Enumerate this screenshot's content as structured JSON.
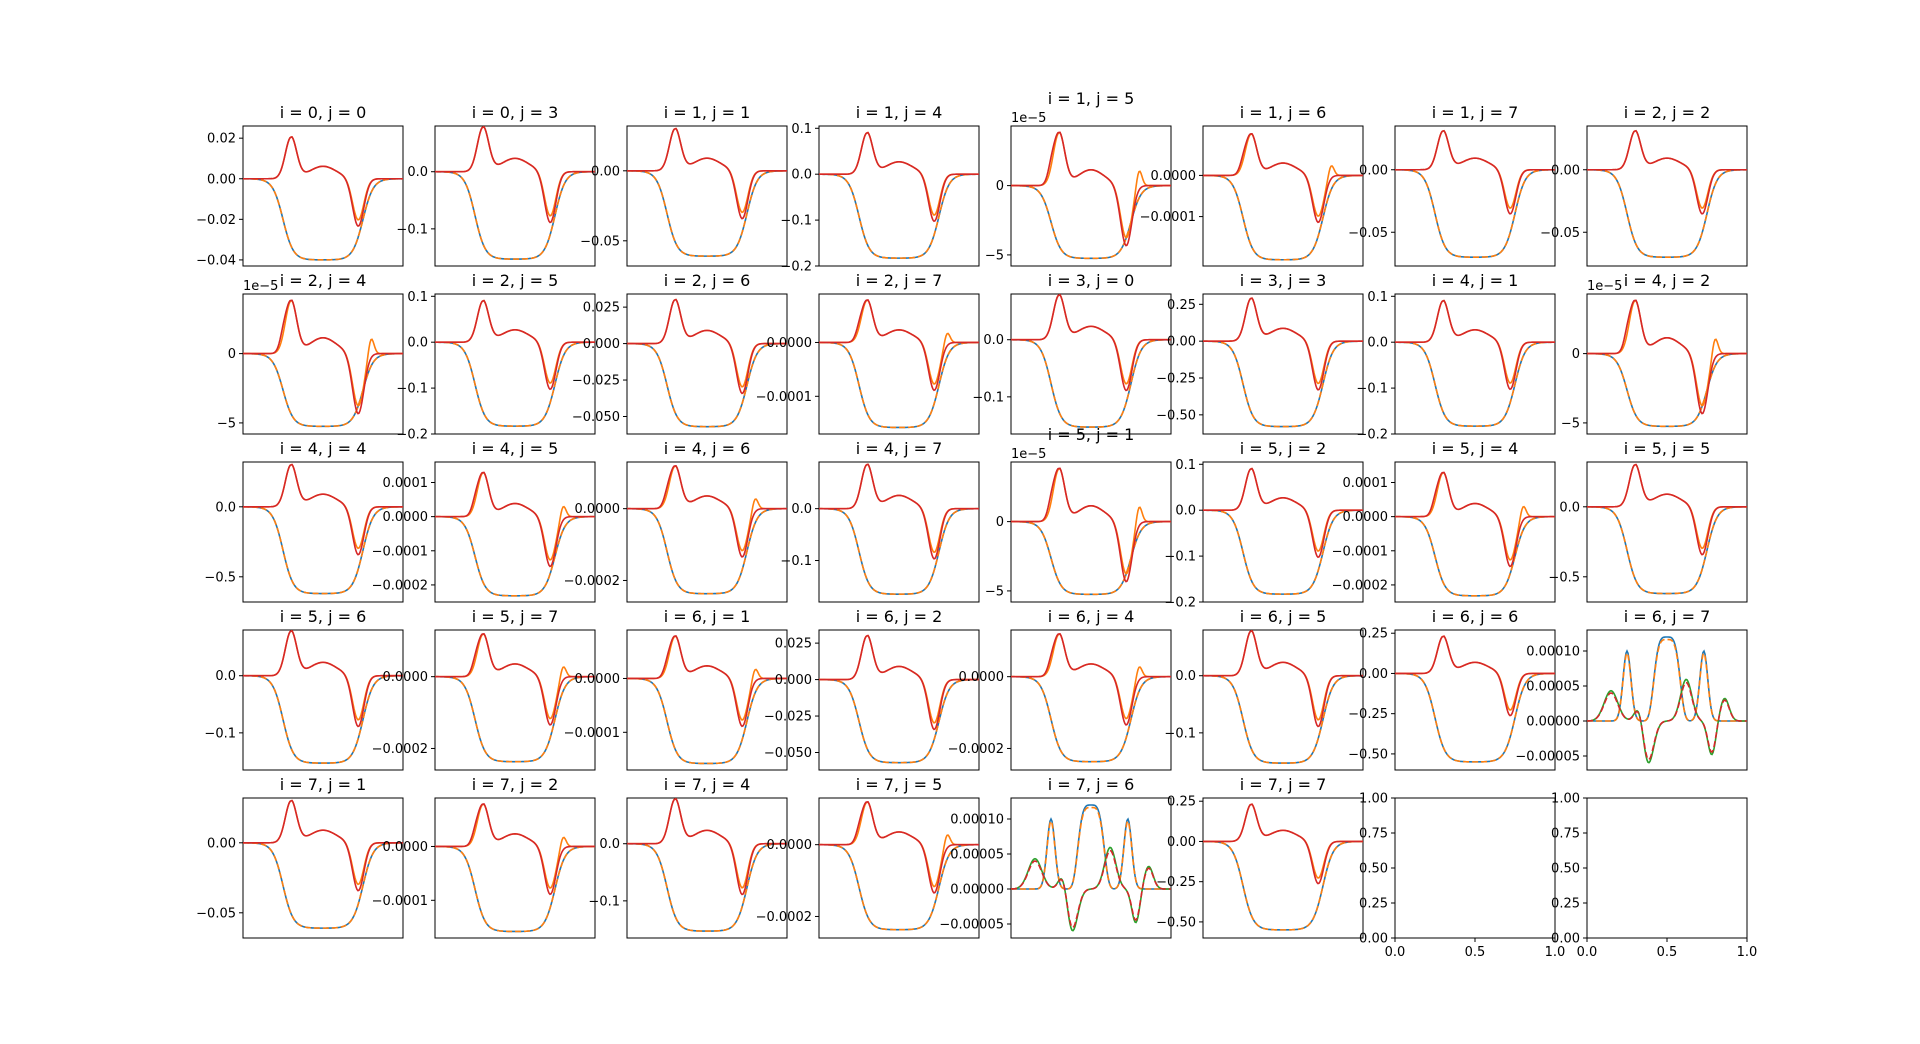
{
  "chart_data": {
    "type": "line",
    "layout": {
      "rows": 5,
      "cols": 8
    },
    "x_range": [
      0,
      1
    ],
    "colors": {
      "a": "#1f77b4",
      "b": "#ff7f0e",
      "c": "#2ca02c",
      "d": "#d62728"
    },
    "panels": [
      {
        "title": "i = 0, j = 0",
        "ylim": [
          -0.043,
          0.026
        ],
        "yticks": [
          "0.02",
          "0.00",
          "−0.02",
          "−0.04"
        ],
        "ytick_values": [
          0.02,
          0.0,
          -0.02,
          -0.04
        ],
        "peak": 0.0205,
        "trough": -0.0205,
        "low": -0.04
      },
      {
        "title": "i = 0, j = 3",
        "ylim": [
          -0.165,
          0.08
        ],
        "yticks": [
          "0.0",
          "−0.1"
        ],
        "ytick_values": [
          0.0,
          -0.1
        ],
        "peak": 0.078,
        "trough": -0.078,
        "low": -0.153
      },
      {
        "title": "i = 1, j = 1",
        "ylim": [
          -0.068,
          0.032
        ],
        "yticks": [
          "0.00",
          "−0.05"
        ],
        "ytick_values": [
          0.0,
          -0.05
        ],
        "peak": 0.03,
        "trough": -0.03,
        "low": -0.061
      },
      {
        "title": "i = 1, j = 4",
        "ylim": [
          -0.2,
          0.105
        ],
        "yticks": [
          "0.1",
          "0.0",
          "−0.1",
          "−0.2"
        ],
        "ytick_values": [
          0.1,
          0.0,
          -0.1,
          -0.2
        ],
        "peak": 0.09,
        "trough": -0.09,
        "low": -0.183
      },
      {
        "title": "i = 1, j = 5",
        "offset": "1e−5",
        "ylim": [
          -5.8,
          4.3
        ],
        "yticks": [
          "0",
          "−5"
        ],
        "ytick_values": [
          0,
          -5
        ],
        "peak": 3.8,
        "trough": -3.8,
        "low": -5.25,
        "bump": 1.3
      },
      {
        "title": "i = 1, j = 6",
        "ylim": [
          -0.00022,
          0.00012
        ],
        "yticks": [
          "0.0000",
          "−0.0001"
        ],
        "ytick_values": [
          0.0,
          -0.0001
        ],
        "peak": 0.0001,
        "trough": -0.0001,
        "low": -0.000205,
        "bump": 3e-05
      },
      {
        "title": "i = 1, j = 7",
        "ylim": [
          -0.077,
          0.035
        ],
        "yticks": [
          "0.00",
          "−0.05"
        ],
        "ytick_values": [
          0.0,
          -0.05
        ],
        "peak": 0.031,
        "trough": -0.031,
        "low": -0.07
      },
      {
        "title": "i = 2, j = 2",
        "ylim": [
          -0.077,
          0.035
        ],
        "yticks": [
          "0.00",
          "−0.05"
        ],
        "ytick_values": [
          0.0,
          -0.05
        ],
        "peak": 0.031,
        "trough": -0.031,
        "low": -0.07
      },
      {
        "title": "i = 2, j = 4",
        "offset": "1e−5",
        "ylim": [
          -5.8,
          4.3
        ],
        "yticks": [
          "0",
          "−5"
        ],
        "ytick_values": [
          0,
          -5
        ],
        "peak": 3.8,
        "trough": -3.8,
        "low": -5.25,
        "bump": 1.3
      },
      {
        "title": "i = 2, j = 5",
        "ylim": [
          -0.2,
          0.105
        ],
        "yticks": [
          "0.1",
          "0.0",
          "−0.1",
          "−0.2"
        ],
        "ytick_values": [
          0.1,
          0.0,
          -0.1,
          -0.2
        ],
        "peak": 0.09,
        "trough": -0.09,
        "low": -0.183
      },
      {
        "title": "i = 2, j = 6",
        "ylim": [
          -0.062,
          0.034
        ],
        "yticks": [
          "0.025",
          "0.000",
          "−0.025",
          "−0.050"
        ],
        "ytick_values": [
          0.025,
          0.0,
          -0.025,
          -0.05
        ],
        "peak": 0.03,
        "trough": -0.03,
        "low": -0.057
      },
      {
        "title": "i = 2, j = 7",
        "ylim": [
          -0.00017,
          9e-05
        ],
        "yticks": [
          "0.0000",
          "−0.0001"
        ],
        "ytick_values": [
          0.0,
          -0.0001
        ],
        "peak": 7.8e-05,
        "trough": -7.8e-05,
        "low": -0.000158,
        "bump": 2.2e-05
      },
      {
        "title": "i = 3, j = 0",
        "ylim": [
          -0.165,
          0.08
        ],
        "yticks": [
          "0.0",
          "−0.1"
        ],
        "ytick_values": [
          0.0,
          -0.1
        ],
        "peak": 0.078,
        "trough": -0.078,
        "low": -0.153
      },
      {
        "title": "i = 3, j = 3",
        "ylim": [
          -0.63,
          0.32
        ],
        "yticks": [
          "0.25",
          "0.00",
          "−0.25",
          "−0.50"
        ],
        "ytick_values": [
          0.25,
          0.0,
          -0.25,
          -0.5
        ],
        "peak": 0.29,
        "trough": -0.29,
        "low": -0.58
      },
      {
        "title": "i = 4, j = 1",
        "ylim": [
          -0.2,
          0.105
        ],
        "yticks": [
          "0.1",
          "0.0",
          "−0.1",
          "−0.2"
        ],
        "ytick_values": [
          0.1,
          0.0,
          -0.1,
          -0.2
        ],
        "peak": 0.09,
        "trough": -0.09,
        "low": -0.183
      },
      {
        "title": "i = 4, j = 2",
        "offset": "1e−5",
        "ylim": [
          -5.8,
          4.3
        ],
        "yticks": [
          "0",
          "−5"
        ],
        "ytick_values": [
          0,
          -5
        ],
        "peak": 3.8,
        "trough": -3.8,
        "low": -5.25,
        "bump": 1.3
      },
      {
        "title": "i = 4, j = 4",
        "ylim": [
          -0.68,
          0.32
        ],
        "yticks": [
          "0.0",
          "−0.5"
        ],
        "ytick_values": [
          0.0,
          -0.5
        ],
        "peak": 0.3,
        "trough": -0.3,
        "low": -0.62
      },
      {
        "title": "i = 4, j = 5",
        "ylim": [
          -0.00025,
          0.00016
        ],
        "yticks": [
          "0.0001",
          "0.0000",
          "−0.0001",
          "−0.0002"
        ],
        "ytick_values": [
          0.0001,
          0.0,
          -0.0001,
          -0.0002
        ],
        "peak": 0.000128,
        "trough": -0.000128,
        "low": -0.000232,
        "bump": 3.8e-05
      },
      {
        "title": "i = 4, j = 6",
        "ylim": [
          -0.00026,
          0.00013
        ],
        "yticks": [
          "0.0000",
          "−0.0002"
        ],
        "ytick_values": [
          0.0,
          -0.0002
        ],
        "peak": 0.000118,
        "trough": -0.000118,
        "low": -0.000237,
        "bump": 3.5e-05
      },
      {
        "title": "i = 4, j = 7",
        "ylim": [
          -0.18,
          0.09
        ],
        "yticks": [
          "0.0",
          "−0.1"
        ],
        "ytick_values": [
          0.0,
          -0.1
        ],
        "peak": 0.085,
        "trough": -0.085,
        "low": -0.165
      },
      {
        "title": "i = 5, j = 1",
        "offset": "1e−5",
        "ylim": [
          -5.8,
          4.3
        ],
        "yticks": [
          "0",
          "−5"
        ],
        "ytick_values": [
          0,
          -5
        ],
        "peak": 3.8,
        "trough": -3.8,
        "low": -5.25,
        "bump": 1.3
      },
      {
        "title": "i = 5, j = 2",
        "ylim": [
          -0.2,
          0.105
        ],
        "yticks": [
          "0.1",
          "0.0",
          "−0.1",
          "−0.2"
        ],
        "ytick_values": [
          0.1,
          0.0,
          -0.1,
          -0.2
        ],
        "peak": 0.09,
        "trough": -0.09,
        "low": -0.183
      },
      {
        "title": "i = 5, j = 4",
        "ylim": [
          -0.00025,
          0.00016
        ],
        "yticks": [
          "0.0001",
          "0.0000",
          "−0.0001",
          "−0.0002"
        ],
        "ytick_values": [
          0.0001,
          0.0,
          -0.0001,
          -0.0002
        ],
        "peak": 0.000128,
        "trough": -0.000128,
        "low": -0.000232,
        "bump": 3.8e-05
      },
      {
        "title": "i = 5, j = 5",
        "ylim": [
          -0.68,
          0.32
        ],
        "yticks": [
          "0.0",
          "−0.5"
        ],
        "ytick_values": [
          0.0,
          -0.5
        ],
        "peak": 0.3,
        "trough": -0.3,
        "low": -0.62
      },
      {
        "title": "i = 5, j = 6",
        "ylim": [
          -0.165,
          0.08
        ],
        "yticks": [
          "0.0",
          "−0.1"
        ],
        "ytick_values": [
          0.0,
          -0.1
        ],
        "peak": 0.078,
        "trough": -0.078,
        "low": -0.153
      },
      {
        "title": "i = 5, j = 7",
        "ylim": [
          -0.00026,
          0.00013
        ],
        "yticks": [
          "0.0000",
          "−0.0002"
        ],
        "ytick_values": [
          0.0,
          -0.0002
        ],
        "peak": 0.000118,
        "trough": -0.000118,
        "low": -0.000237,
        "bump": 3.5e-05
      },
      {
        "title": "i = 6, j = 1",
        "ylim": [
          -0.00017,
          9e-05
        ],
        "yticks": [
          "0.0000",
          "−0.0001"
        ],
        "ytick_values": [
          0.0,
          -0.0001
        ],
        "peak": 7.8e-05,
        "trough": -7.8e-05,
        "low": -0.000158,
        "bump": 2.2e-05
      },
      {
        "title": "i = 6, j = 2",
        "ylim": [
          -0.062,
          0.034
        ],
        "yticks": [
          "0.025",
          "0.000",
          "−0.025",
          "−0.050"
        ],
        "ytick_values": [
          0.025,
          0.0,
          -0.025,
          -0.05
        ],
        "peak": 0.03,
        "trough": -0.03,
        "low": -0.057
      },
      {
        "title": "i = 6, j = 4",
        "ylim": [
          -0.00026,
          0.00013
        ],
        "yticks": [
          "0.0000",
          "−0.0002"
        ],
        "ytick_values": [
          0.0,
          -0.0002
        ],
        "peak": 0.000118,
        "trough": -0.000118,
        "low": -0.000237,
        "bump": 3.5e-05
      },
      {
        "title": "i = 6, j = 5",
        "ylim": [
          -0.165,
          0.08
        ],
        "yticks": [
          "0.0",
          "−0.1"
        ],
        "ytick_values": [
          0.0,
          -0.1
        ],
        "peak": 0.078,
        "trough": -0.078,
        "low": -0.153
      },
      {
        "title": "i = 6, j = 6",
        "ylim": [
          -0.6,
          0.27
        ],
        "yticks": [
          "0.25",
          "0.00",
          "−0.25",
          "−0.50"
        ],
        "ytick_values": [
          0.25,
          0.0,
          -0.25,
          -0.5
        ],
        "peak": 0.23,
        "trough": -0.23,
        "low": -0.55
      },
      {
        "title": "i = 6, j = 7",
        "variant": "oscillating",
        "ylim": [
          -7e-05,
          0.00013
        ],
        "yticks": [
          "0.00010",
          "0.00005",
          "0.00000",
          "−0.00005"
        ],
        "ytick_values": [
          0.0001,
          5e-05,
          0.0,
          -5e-05
        ],
        "peak": 0.00012,
        "side_peak": 0.0001,
        "dip": -6e-05
      },
      {
        "title": "i = 7, j = 1",
        "ylim": [
          -0.068,
          0.032
        ],
        "yticks": [
          "0.00",
          "−0.05"
        ],
        "ytick_values": [
          0.0,
          -0.05
        ],
        "peak": 0.03,
        "trough": -0.03,
        "low": -0.061
      },
      {
        "title": "i = 7, j = 2",
        "ylim": [
          -0.00017,
          9e-05
        ],
        "yticks": [
          "0.0000",
          "−0.0001"
        ],
        "ytick_values": [
          0.0,
          -0.0001
        ],
        "peak": 7.8e-05,
        "trough": -7.8e-05,
        "low": -0.000158,
        "bump": 2.2e-05
      },
      {
        "title": "i = 7, j = 4",
        "ylim": [
          -0.165,
          0.08
        ],
        "yticks": [
          "0.0",
          "−0.1"
        ],
        "ytick_values": [
          0.0,
          -0.1
        ],
        "peak": 0.078,
        "trough": -0.078,
        "low": -0.153
      },
      {
        "title": "i = 7, j = 5",
        "ylim": [
          -0.00026,
          0.00013
        ],
        "yticks": [
          "0.0000",
          "−0.0002"
        ],
        "ytick_values": [
          0.0,
          -0.0002
        ],
        "peak": 0.000118,
        "trough": -0.000118,
        "low": -0.000237,
        "bump": 3.5e-05
      },
      {
        "title": "i = 7, j = 6",
        "variant": "oscillating",
        "ylim": [
          -7e-05,
          0.00013
        ],
        "yticks": [
          "0.00010",
          "0.00005",
          "0.00000",
          "−0.00005"
        ],
        "ytick_values": [
          0.0001,
          5e-05,
          0.0,
          -5e-05
        ],
        "peak": 0.00012,
        "side_peak": 0.0001,
        "dip": -6e-05
      },
      {
        "title": "i = 7, j = 7",
        "ylim": [
          -0.6,
          0.27
        ],
        "yticks": [
          "0.25",
          "0.00",
          "−0.25",
          "−0.50"
        ],
        "ytick_values": [
          0.25,
          0.0,
          -0.25,
          -0.5
        ],
        "peak": 0.23,
        "trough": -0.23,
        "low": -0.55
      },
      {
        "title": "",
        "empty": true,
        "ylim": [
          0,
          1
        ],
        "yticks": [
          "1.00",
          "0.75",
          "0.50",
          "0.25",
          "0.00"
        ],
        "ytick_values": [
          1.0,
          0.75,
          0.5,
          0.25,
          0.0
        ],
        "xticks": [
          "0.0",
          "0.5",
          "1.0"
        ]
      },
      {
        "title": "",
        "empty": true,
        "ylim": [
          0,
          1
        ],
        "yticks": [
          "1.00",
          "0.75",
          "0.50",
          "0.25",
          "0.00"
        ],
        "ytick_values": [
          1.0,
          0.75,
          0.5,
          0.25,
          0.0
        ],
        "xticks": [
          "0.0",
          "0.5",
          "1.0"
        ]
      }
    ]
  }
}
